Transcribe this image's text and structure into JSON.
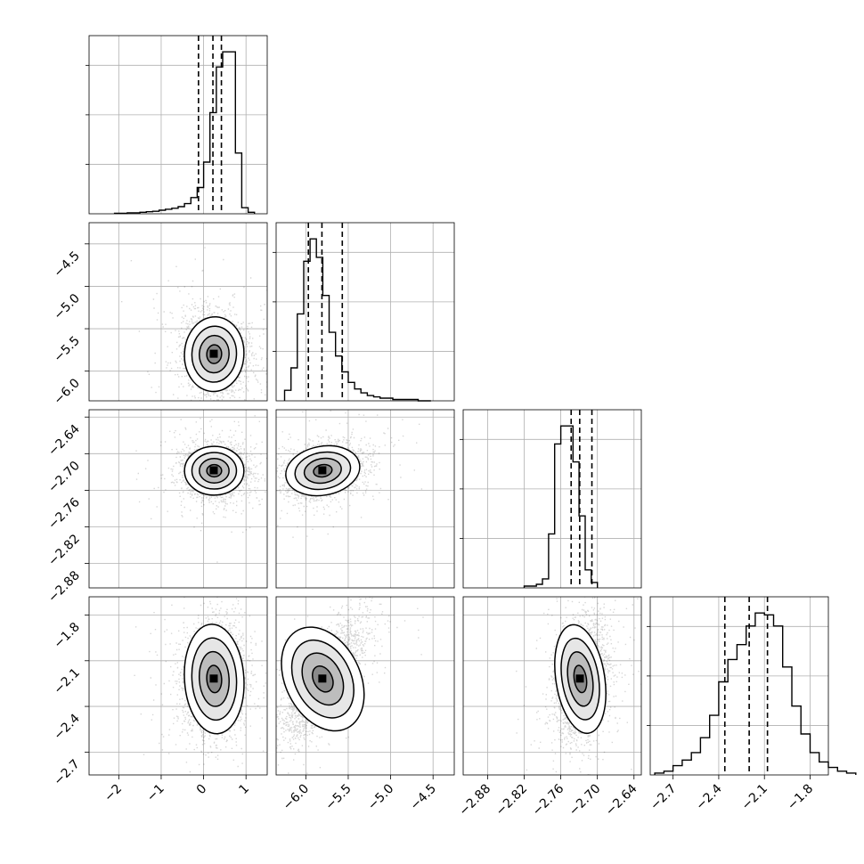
{
  "chart_data": {
    "type": "corner",
    "n_params": 4,
    "grid": true,
    "quantile_lines": "dashed",
    "axes": [
      {
        "range": [
          -2.7,
          1.5
        ],
        "ticks": [
          -2,
          -1,
          0,
          1
        ],
        "tick_labels": [
          "−2",
          "−1",
          "0",
          "1"
        ]
      },
      {
        "range": [
          -6.35,
          -4.25
        ],
        "ticks": [
          -6.0,
          -5.5,
          -5.0,
          -4.5
        ],
        "tick_labels": [
          "−6.0",
          "−5.5",
          "−5.0",
          "−4.5"
        ]
      },
      {
        "range": [
          -2.92,
          -2.628
        ],
        "ticks": [
          -2.88,
          -2.82,
          -2.76,
          -2.7,
          -2.64
        ],
        "tick_labels": [
          "−2.88",
          "−2.82",
          "−2.76",
          "−2.70",
          "−2.64"
        ]
      },
      {
        "range": [
          -2.85,
          -1.68
        ],
        "ticks": [
          -2.7,
          -2.4,
          -2.1,
          -1.8
        ],
        "tick_labels": [
          "−2.7",
          "−2.4",
          "−2.1",
          "−1.8"
        ]
      }
    ],
    "histograms": [
      {
        "bins_start": -2.1,
        "bin_width": 0.15,
        "counts": [
          1,
          1,
          2,
          2,
          3,
          4,
          5,
          7,
          9,
          11,
          14,
          20,
          32,
          52,
          102,
          200,
          290,
          320,
          320,
          120,
          12,
          3
        ],
        "quantiles": [
          -0.12,
          0.22,
          0.42
        ]
      },
      {
        "bins_start": -6.25,
        "bin_width": 0.075,
        "counts": [
          8,
          25,
          66,
          106,
          123,
          109,
          80,
          52,
          34,
          22,
          14,
          9,
          6,
          4,
          3,
          2,
          2,
          1,
          1,
          1,
          1,
          0,
          0
        ],
        "quantiles": [
          -5.97,
          -5.81,
          -5.57
        ]
      },
      {
        "bins_start": -2.82,
        "bin_width": 0.01,
        "counts": [
          1,
          1,
          2,
          5,
          30,
          80,
          90,
          90,
          70,
          40,
          10,
          3
        ],
        "quantiles": [
          -2.743,
          -2.729,
          -2.709
        ]
      },
      {
        "bins_start": -2.82,
        "bin_width": 0.06,
        "counts": [
          1,
          2,
          5,
          8,
          12,
          20,
          32,
          50,
          62,
          70,
          80,
          87,
          86,
          80,
          58,
          37,
          22,
          12,
          7,
          4,
          2,
          1
        ],
        "quantiles": [
          -2.36,
          -2.2,
          -2.08
        ]
      }
    ],
    "means": [
      0.25,
      -5.8,
      -2.728,
      -2.22
    ],
    "sigmas": [
      0.35,
      0.22,
      0.02,
      0.18
    ],
    "correlations": {
      "1-0": -0.1,
      "2-0": 0.0,
      "2-1": 0.3,
      "3-0": 0.1,
      "3-1": 0.75,
      "3-2": 0.25
    },
    "contour_levels_sigma": [
      0.5,
      1.0,
      1.5,
      2.0
    ]
  }
}
